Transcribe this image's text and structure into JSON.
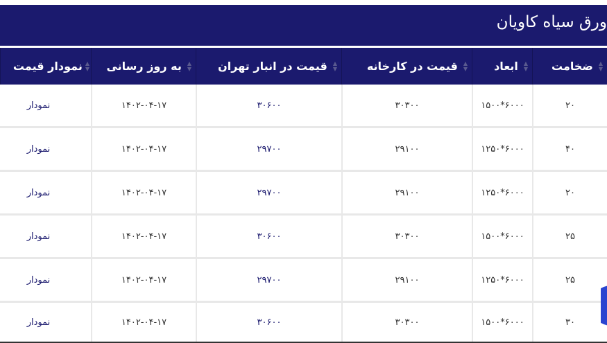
{
  "title": "ورق سیاه کاویان",
  "colors": {
    "header_bg": "#1b1a6e",
    "fab": "#2a44d0"
  },
  "columns": [
    {
      "label": "ضخامت",
      "sort_icon": "sort-icon"
    },
    {
      "label": "ابعاد",
      "sort_icon": "sort-icon"
    },
    {
      "label": "قیمت در کارخانه",
      "sort_icon": "sort-icon"
    },
    {
      "label": "قیمت در انبار تهران",
      "sort_icon": "sort-icon"
    },
    {
      "label": "به روز رسانی",
      "sort_icon": "sort-icon"
    },
    {
      "label": "نمودار قیمت",
      "sort_icon": "sort-icon"
    }
  ],
  "rows": [
    {
      "thickness": "۲۰",
      "dims": "۱۵۰۰*۶۰۰۰",
      "factory": "۳۰۳۰۰",
      "tehran": "۳۰۶۰۰",
      "updated": "۱۴۰۲-۰۴-۱۷",
      "chart": "نمودار"
    },
    {
      "thickness": "۴۰",
      "dims": "۱۲۵۰*۶۰۰۰",
      "factory": "۲۹۱۰۰",
      "tehran": "۲۹۷۰۰",
      "updated": "۱۴۰۲-۰۴-۱۷",
      "chart": "نمودار"
    },
    {
      "thickness": "۲۰",
      "dims": "۱۲۵۰*۶۰۰۰",
      "factory": "۲۹۱۰۰",
      "tehran": "۲۹۷۰۰",
      "updated": "۱۴۰۲-۰۴-۱۷",
      "chart": "نمودار"
    },
    {
      "thickness": "۲۵",
      "dims": "۱۵۰۰*۶۰۰۰",
      "factory": "۳۰۳۰۰",
      "tehran": "۳۰۶۰۰",
      "updated": "۱۴۰۲-۰۴-۱۷",
      "chart": "نمودار"
    },
    {
      "thickness": "۲۵",
      "dims": "۱۲۵۰*۶۰۰۰",
      "factory": "۲۹۱۰۰",
      "tehran": "۲۹۷۰۰",
      "updated": "۱۴۰۲-۰۴-۱۷",
      "chart": "نمودار"
    },
    {
      "thickness": "۳۰",
      "dims": "۱۵۰۰*۶۰۰۰",
      "factory": "۳۰۳۰۰",
      "tehran": "۳۰۶۰۰",
      "updated": "۱۴۰۲-۰۴-۱۷",
      "chart": "نمودار"
    }
  ]
}
